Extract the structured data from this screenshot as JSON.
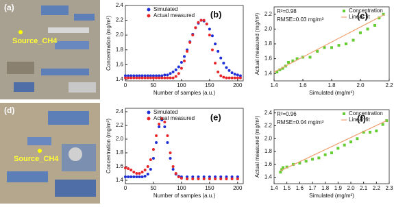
{
  "images": [
    {
      "label": "(a)",
      "marker_label": "Source_CH4"
    },
    {
      "label": "(d)",
      "marker_label": "Source_CH4"
    }
  ],
  "chart_data": [
    {
      "type": "scatter",
      "panel_label": "(b)",
      "x_label": "Number of samples (a.u.)",
      "y_label": "Concentration (mg/m³)",
      "legend": "top-center",
      "xlim": [
        0,
        210
      ],
      "xticks": [
        0,
        50,
        100,
        150,
        200
      ],
      "ylim": [
        1.38,
        2.4
      ],
      "yticks": [
        1.4,
        1.6,
        1.8,
        {
          "value": 2,
          "label": "2.0"
        },
        2.2,
        2.4
      ],
      "series": [
        {
          "name": "Simulated",
          "color": "#1f2fd8",
          "marker": "circle",
          "x": [
            0,
            5,
            10,
            15,
            20,
            25,
            30,
            35,
            40,
            45,
            50,
            55,
            60,
            65,
            70,
            75,
            80,
            85,
            90,
            95,
            100,
            105,
            110,
            115,
            120,
            125,
            130,
            135,
            140,
            145,
            150,
            155,
            160,
            165,
            170,
            175,
            180,
            185,
            190,
            195,
            200,
            205
          ],
          "values": [
            1.45,
            1.45,
            1.45,
            1.45,
            1.45,
            1.45,
            1.45,
            1.45,
            1.45,
            1.45,
            1.45,
            1.45,
            1.45,
            1.45,
            1.46,
            1.46,
            1.48,
            1.5,
            1.53,
            1.57,
            1.63,
            1.71,
            1.8,
            1.91,
            2.01,
            2.1,
            2.16,
            2.2,
            2.19,
            2.15,
            2.08,
            1.99,
            1.88,
            1.78,
            1.69,
            1.62,
            1.56,
            1.52,
            1.49,
            1.47,
            1.46,
            1.45
          ]
        },
        {
          "name": "Actual measured",
          "color": "#e8262a",
          "marker": "circle",
          "x": [
            0,
            5,
            10,
            15,
            20,
            25,
            30,
            35,
            40,
            45,
            50,
            55,
            60,
            65,
            70,
            75,
            80,
            85,
            90,
            95,
            100,
            105,
            110,
            115,
            120,
            125,
            130,
            135,
            140,
            145,
            150,
            155,
            160,
            165,
            170,
            175,
            180,
            185,
            190,
            195,
            200,
            205
          ],
          "values": [
            1.42,
            1.42,
            1.42,
            1.42,
            1.42,
            1.42,
            1.42,
            1.42,
            1.42,
            1.42,
            1.42,
            1.42,
            1.42,
            1.42,
            1.42,
            1.42,
            1.42,
            1.42,
            1.44,
            1.48,
            1.55,
            1.65,
            1.78,
            1.9,
            2.0,
            2.1,
            2.17,
            2.2,
            2.2,
            2.15,
            2.0,
            1.8,
            1.62,
            1.5,
            1.45,
            1.43,
            1.42,
            1.42,
            1.42,
            1.42,
            1.42,
            1.42
          ]
        }
      ]
    },
    {
      "type": "scatter",
      "panel_label": "(c)",
      "x_label": "Simulated (mg/m³)",
      "y_label": "Actual measured (mg/m³)",
      "legend": "top-right",
      "annotations": [
        "R²=0.98",
        "RMSE=0.03 mg/m³"
      ],
      "xlim": [
        1.4,
        2.2
      ],
      "xticks": [
        1.4,
        1.6,
        1.8,
        {
          "value": 2,
          "label": "2.0"
        },
        2.2
      ],
      "ylim": [
        1.3,
        2.3
      ],
      "yticks": [
        1.4,
        1.6,
        1.8,
        {
          "value": 2,
          "label": "2.0"
        },
        2.2
      ],
      "series": [
        {
          "name": "Concentration",
          "color": "#66cc33",
          "marker": "square",
          "x": [
            1.42,
            1.44,
            1.46,
            1.48,
            1.5,
            1.53,
            1.56,
            1.6,
            1.65,
            1.7,
            1.75,
            1.8,
            1.85,
            1.9,
            1.95,
            2.0,
            2.05,
            2.1,
            2.13,
            2.16
          ],
          "values": [
            1.42,
            1.45,
            1.47,
            1.5,
            1.55,
            1.57,
            1.6,
            1.62,
            1.62,
            1.7,
            1.75,
            1.75,
            1.78,
            1.8,
            1.85,
            1.95,
            2.0,
            2.05,
            2.15,
            2.2
          ]
        },
        {
          "name": "Linear fit",
          "color": "#f0a070",
          "marker": "line",
          "x": [
            1.4,
            2.17
          ],
          "values": [
            1.42,
            2.2
          ]
        }
      ]
    },
    {
      "type": "scatter",
      "panel_label": "(e)",
      "x_label": "Number of samples (a.u.)",
      "y_label": "Concentration (mg/m³)",
      "legend": "top-center",
      "xlim": [
        0,
        210
      ],
      "xticks": [
        0,
        50,
        100,
        150,
        200
      ],
      "ylim": [
        1.35,
        2.45
      ],
      "yticks": [
        1.4,
        1.6,
        1.8,
        {
          "value": 2,
          "label": "2.0"
        },
        2.2,
        2.4
      ],
      "series": [
        {
          "name": "Simulated",
          "color": "#1f2fd8",
          "marker": "circle",
          "x": [
            0,
            5,
            10,
            15,
            20,
            25,
            30,
            35,
            40,
            45,
            50,
            55,
            60,
            65,
            70,
            75,
            80,
            85,
            90,
            95,
            100,
            110,
            120,
            130,
            140,
            150,
            160,
            170,
            180,
            190,
            200
          ],
          "values": [
            1.45,
            1.45,
            1.45,
            1.45,
            1.45,
            1.45,
            1.45,
            1.46,
            1.49,
            1.56,
            1.72,
            1.95,
            2.18,
            2.28,
            2.18,
            1.95,
            1.72,
            1.56,
            1.49,
            1.46,
            1.45,
            1.45,
            1.45,
            1.45,
            1.45,
            1.45,
            1.45,
            1.45,
            1.45,
            1.45,
            1.45
          ]
        },
        {
          "name": "Actual measured",
          "color": "#e8262a",
          "marker": "circle",
          "x": [
            0,
            5,
            10,
            15,
            20,
            25,
            30,
            35,
            40,
            45,
            50,
            55,
            60,
            65,
            70,
            75,
            80,
            85,
            90,
            95,
            100,
            110,
            120,
            130,
            140,
            150,
            160,
            170,
            180,
            190,
            200
          ],
          "values": [
            1.58,
            1.57,
            1.55,
            1.52,
            1.5,
            1.5,
            1.52,
            1.55,
            1.6,
            1.7,
            1.85,
            2.05,
            2.22,
            2.3,
            2.25,
            2.05,
            1.8,
            1.6,
            1.5,
            1.45,
            1.43,
            1.42,
            1.42,
            1.42,
            1.42,
            1.42,
            1.42,
            1.42,
            1.42,
            1.42,
            1.42
          ]
        }
      ]
    },
    {
      "type": "scatter",
      "panel_label": "(f)",
      "x_label": "Simulated (mg/m³)",
      "y_label": "Actual measured (mg/m³)",
      "legend": "top-right",
      "annotations": [
        "R²=0.96",
        "RMSE=0.04 mg/m³"
      ],
      "xlim": [
        1.4,
        2.3
      ],
      "xticks": [
        1.4,
        1.5,
        1.6,
        1.7,
        1.8,
        1.9,
        {
          "value": 2,
          "label": "2.0"
        },
        2.1,
        2.2,
        2.3
      ],
      "ylim": [
        1.3,
        2.45
      ],
      "yticks": [
        1.4,
        1.6,
        1.8,
        {
          "value": 2,
          "label": "2.0"
        },
        2.2,
        2.4
      ],
      "series": [
        {
          "name": "Concentration",
          "color": "#66cc33",
          "marker": "square",
          "x": [
            1.45,
            1.46,
            1.47,
            1.5,
            1.55,
            1.6,
            1.65,
            1.7,
            1.75,
            1.8,
            1.85,
            1.9,
            1.95,
            2.0,
            2.05,
            2.1,
            2.15,
            2.2,
            2.25,
            2.28
          ],
          "values": [
            1.48,
            1.52,
            1.55,
            1.56,
            1.6,
            1.62,
            1.65,
            1.68,
            1.7,
            1.75,
            1.78,
            1.85,
            1.9,
            1.95,
            2.0,
            2.1,
            2.1,
            2.12,
            2.22,
            2.28
          ]
        },
        {
          "name": "Linear fit",
          "color": "#f0a070",
          "marker": "line",
          "x": [
            1.45,
            2.28
          ],
          "values": [
            1.5,
            2.28
          ]
        }
      ]
    }
  ]
}
